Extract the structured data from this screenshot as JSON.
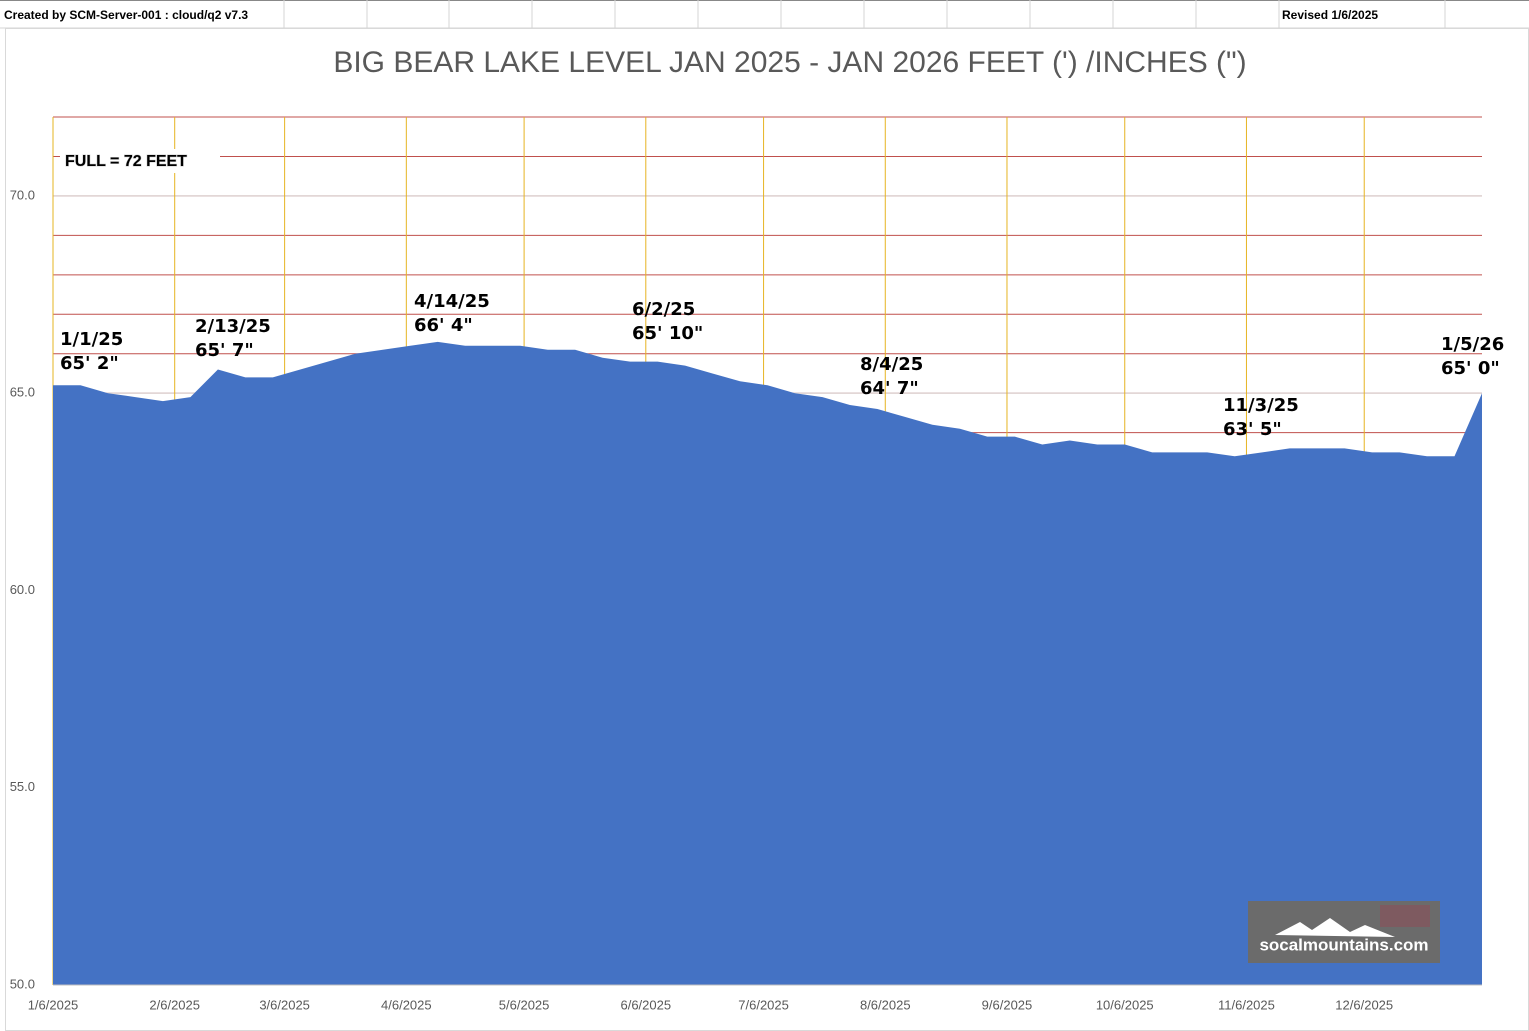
{
  "header": {
    "created": "Created by SCM-Server-001 : cloud/q2 v7.3",
    "revised": "Revised 1/6/2025"
  },
  "chart_data": {
    "type": "area",
    "title": "BIG BEAR LAKE LEVEL JAN 2025 - JAN 2026 FEET (') /INCHES (\")",
    "x": [
      "1/6/2025",
      "1/13/2025",
      "1/20/2025",
      "1/27/2025",
      "2/3/2025",
      "2/10/2025",
      "2/17/2025",
      "2/24/2025",
      "3/3/2025",
      "3/10/2025",
      "3/17/2025",
      "3/24/2025",
      "3/31/2025",
      "4/7/2025",
      "4/14/2025",
      "4/21/2025",
      "4/28/2025",
      "5/5/2025",
      "5/12/2025",
      "5/19/2025",
      "5/26/2025",
      "6/2/2025",
      "6/9/2025",
      "6/16/2025",
      "6/23/2025",
      "6/30/2025",
      "7/7/2025",
      "7/14/2025",
      "7/21/2025",
      "7/28/2025",
      "8/4/2025",
      "8/11/2025",
      "8/18/2025",
      "8/25/2025",
      "9/1/2025",
      "9/8/2025",
      "9/15/2025",
      "9/22/2025",
      "9/29/2025",
      "10/6/2025",
      "10/13/2025",
      "10/20/2025",
      "10/27/2025",
      "11/3/2025",
      "11/10/2025",
      "11/17/2025",
      "11/24/2025",
      "12/1/2025",
      "12/8/2025",
      "12/15/2025",
      "12/22/2025",
      "12/29/2025",
      "1/5/2026"
    ],
    "values": [
      65.2,
      65.2,
      65.0,
      64.9,
      64.8,
      64.9,
      65.6,
      65.4,
      65.4,
      65.6,
      65.8,
      66.0,
      66.1,
      66.2,
      66.3,
      66.2,
      66.2,
      66.2,
      66.1,
      66.1,
      65.9,
      65.8,
      65.8,
      65.7,
      65.5,
      65.3,
      65.2,
      65.0,
      64.9,
      64.7,
      64.6,
      64.4,
      64.2,
      64.1,
      63.9,
      63.9,
      63.7,
      63.8,
      63.7,
      63.7,
      63.5,
      63.5,
      63.5,
      63.4,
      63.5,
      63.6,
      63.6,
      63.6,
      63.5,
      63.5,
      63.4,
      63.4,
      65.0
    ],
    "color": "#4472c4",
    "xlim": [
      "1/6/2025",
      "1/5/2026"
    ],
    "xticks": [
      "1/6/2025",
      "2/6/2025",
      "3/6/2025",
      "4/6/2025",
      "5/6/2025",
      "6/6/2025",
      "7/6/2025",
      "8/6/2025",
      "9/6/2025",
      "10/6/2025",
      "11/6/2025",
      "12/6/2025"
    ],
    "ylim": [
      50,
      72
    ],
    "yticks": [
      {
        "value": 50,
        "label": "50.0"
      },
      {
        "value": 55,
        "label": "55.0"
      },
      {
        "value": 60,
        "label": "60.0"
      },
      {
        "value": 65,
        "label": "65.0"
      },
      {
        "value": 70,
        "label": "70.0"
      }
    ],
    "yminor": [
      64,
      65,
      66,
      67,
      68,
      69,
      70,
      71,
      72
    ],
    "grid": true,
    "full_note": "FULL = 72 FEET",
    "annotations": [
      [
        "1/1/25",
        "65' 2\""
      ],
      [
        "2/13/25",
        "65' 7\""
      ],
      [
        "4/14/25",
        "66' 4\""
      ],
      [
        "6/2/25",
        "65' 10\""
      ],
      [
        "8/4/25",
        "64' 7\""
      ],
      [
        "11/3/25",
        "63' 5\""
      ],
      [
        "1/5/26",
        "65' 0\""
      ]
    ],
    "watermark": "socalmountains.com"
  }
}
